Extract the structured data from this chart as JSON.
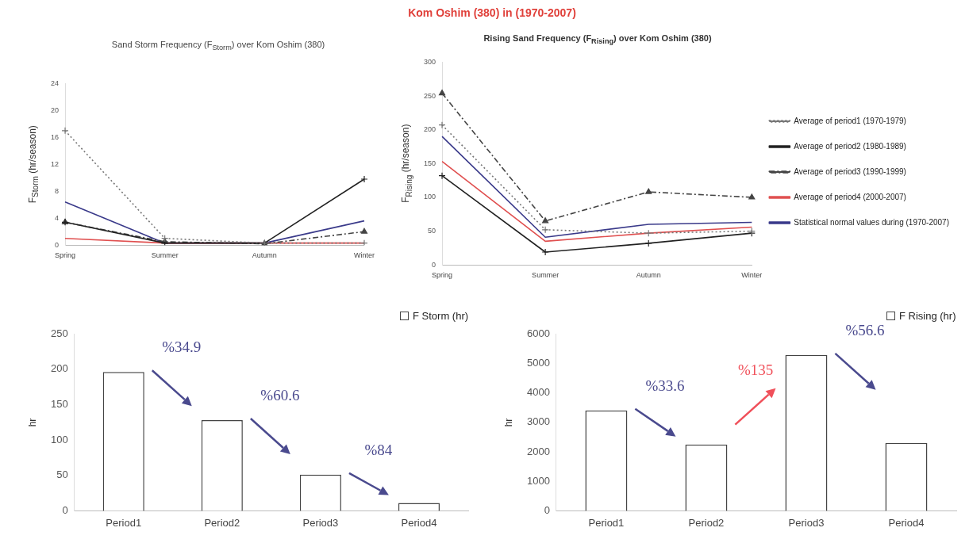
{
  "chart_data": [
    {
      "type": "line",
      "title": "Sand Storm Frequency (F$_{Storm}$) over Kom Oshim (380)",
      "ylabel": "F$_{Storm}$ (hr/season)",
      "categories": [
        "Spring",
        "Summer",
        "Autumn",
        "Winter"
      ],
      "ylim": [
        0,
        24
      ],
      "yticks": [
        0,
        4,
        8,
        12,
        16,
        20,
        24
      ],
      "grid": false,
      "legend": false,
      "series": [
        {
          "color": "#777777",
          "line_style": "dotted",
          "marker": "cross",
          "values": [
            17,
            1,
            0.3,
            0.3
          ]
        },
        {
          "color": "#222222",
          "line_style": "solid",
          "marker": "cross",
          "values": [
            3.4,
            0.3,
            0.3,
            9.8
          ]
        },
        {
          "color": "#444444",
          "line_style": "dashed",
          "marker": "triangle",
          "values": [
            3.4,
            0.5,
            0.2,
            2
          ]
        },
        {
          "color": "#e05050",
          "line_style": "solid",
          "marker": "none",
          "values": [
            1,
            0.3,
            0.3,
            0.3
          ]
        },
        {
          "color": "#3a3a8a",
          "line_style": "solid",
          "marker": "none",
          "values": [
            6.4,
            0.3,
            0.3,
            3.6
          ]
        }
      ]
    },
    {
      "type": "line",
      "title": "Kom Oshim (380) in (1970-2007)",
      "subtitle": "Rising Sand Frequency (F$_{Rising}$) over Kom Oshim (380)",
      "ylabel": "F$_{Rising}$ (hr/season)",
      "categories": [
        "Spring",
        "Summer",
        "Autumn",
        "Winter"
      ],
      "ylim": [
        0,
        300
      ],
      "yticks": [
        0,
        50,
        100,
        150,
        200,
        250,
        300
      ],
      "grid": false,
      "legend": "right",
      "series": [
        {
          "name": "Average of period1 (1970-1979)",
          "color": "#777777",
          "line_style": "dotted",
          "marker": "cross",
          "values": [
            207,
            52,
            47,
            50
          ]
        },
        {
          "name": "Average of period2 (1980-1989)",
          "color": "#222222",
          "line_style": "solid",
          "marker": "cross",
          "values": [
            132,
            19,
            32,
            47
          ]
        },
        {
          "name": "Average of period3 (1990-1999)",
          "color": "#444444",
          "line_style": "dashed",
          "marker": "triangle",
          "values": [
            254,
            65,
            108,
            100
          ]
        },
        {
          "name": "Average of period4 (2000-2007)",
          "color": "#e05050",
          "line_style": "solid",
          "marker": "none",
          "values": [
            153,
            35,
            47,
            56
          ]
        },
        {
          "name": "Statistical normal values during (1970-2007)",
          "color": "#3a3a8a",
          "line_style": "solid",
          "marker": "none",
          "values": [
            190,
            41,
            60,
            63
          ]
        }
      ]
    },
    {
      "type": "bar",
      "ylabel": "hr",
      "categories": [
        "Period1",
        "Period2",
        "Period3",
        "Period4"
      ],
      "ylim": [
        0,
        250
      ],
      "yticks": [
        0,
        50,
        100,
        150,
        200,
        250
      ],
      "grid": false,
      "legend": "top right",
      "series": [
        {
          "name": "F Storm (hr)",
          "color": "#ffffff",
          "values": [
            196,
            128,
            51,
            11
          ]
        }
      ],
      "annotations": [
        "%34.9",
        "%60.6",
        "%84"
      ]
    },
    {
      "type": "bar",
      "ylabel": "hr",
      "categories": [
        "Period1",
        "Period2",
        "Period3",
        "Period4"
      ],
      "ylim": [
        0,
        6000
      ],
      "yticks": [
        0,
        1000,
        2000,
        3000,
        4000,
        5000,
        6000
      ],
      "grid": false,
      "legend": "top right",
      "series": [
        {
          "name": "F Rising (hr)",
          "color": "#ffffff",
          "values": [
            3400,
            2250,
            5280,
            2300
          ]
        }
      ],
      "annotations": [
        "%33.6",
        "%135",
        "%56.6"
      ]
    }
  ]
}
